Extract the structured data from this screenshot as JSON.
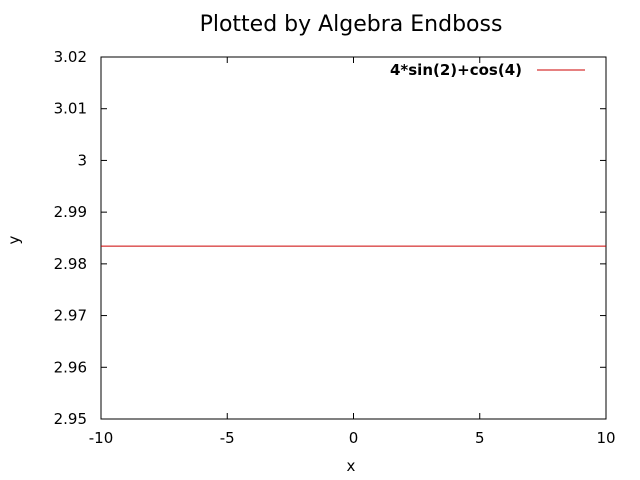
{
  "chart_data": {
    "type": "line",
    "title": "Plotted by Algebra Endboss",
    "xlabel": "x",
    "ylabel": "y",
    "xlim": [
      -10,
      10
    ],
    "ylim": [
      2.95,
      3.02
    ],
    "x_ticks": [
      "-10",
      "-5",
      "0",
      "5",
      "10"
    ],
    "y_ticks": [
      "2.95",
      "2.96",
      "2.97",
      "2.98",
      "2.99",
      "3",
      "3.01",
      "3.02"
    ],
    "grid": false,
    "legend_position": "top-right",
    "series": [
      {
        "name": "4*sin(2)+cos(4)",
        "color": "#cc0000",
        "x": [
          -10,
          10
        ],
        "y": [
          2.98344,
          2.98344
        ]
      }
    ]
  }
}
